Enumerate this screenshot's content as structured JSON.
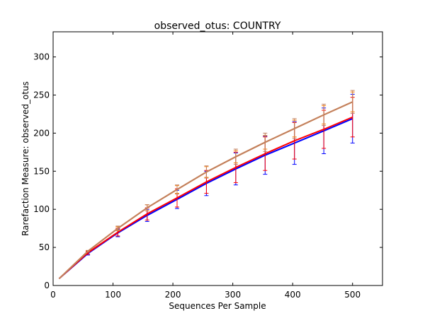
{
  "chart_data": {
    "type": "line",
    "title": "observed_otus: COUNTRY",
    "xlabel": "Sequences Per Sample",
    "ylabel": "Rarefaction Measure: observed_otus",
    "xlim": [
      0,
      550
    ],
    "ylim": [
      0,
      333
    ],
    "xticks": [
      0,
      100,
      200,
      300,
      400,
      500
    ],
    "yticks": [
      0,
      50,
      100,
      150,
      200,
      250,
      300
    ],
    "grid": false,
    "x": [
      10,
      58,
      108,
      157,
      207,
      256,
      305,
      354,
      403,
      452,
      500
    ],
    "series": [
      {
        "color": "#0000ff",
        "values": [
          9,
          42,
          69,
          92,
          113,
          134,
          153,
          171,
          187,
          203,
          219
        ],
        "err": [
          0,
          2,
          5,
          8,
          12,
          16,
          21,
          25,
          28,
          30,
          32
        ]
      },
      {
        "color": "#ff0000",
        "values": [
          9,
          43,
          70,
          94,
          115,
          136,
          155,
          173,
          190,
          205,
          221
        ],
        "err": [
          0,
          2,
          5,
          8,
          12,
          15,
          20,
          22,
          24,
          25,
          26
        ]
      },
      {
        "color": "#ff8000",
        "values": [
          9,
          45,
          75,
          102,
          126,
          149,
          169,
          188,
          206,
          224,
          241
        ],
        "err": [
          0,
          1,
          2,
          4,
          5,
          7,
          8,
          9,
          11,
          12,
          13
        ]
      },
      {
        "color": "#c08060",
        "values": [
          9,
          45,
          75,
          102,
          126,
          149,
          169,
          188,
          206,
          224,
          241
        ],
        "err": [
          0,
          1,
          3,
          4,
          6,
          8,
          10,
          12,
          13,
          14,
          15
        ]
      }
    ]
  }
}
